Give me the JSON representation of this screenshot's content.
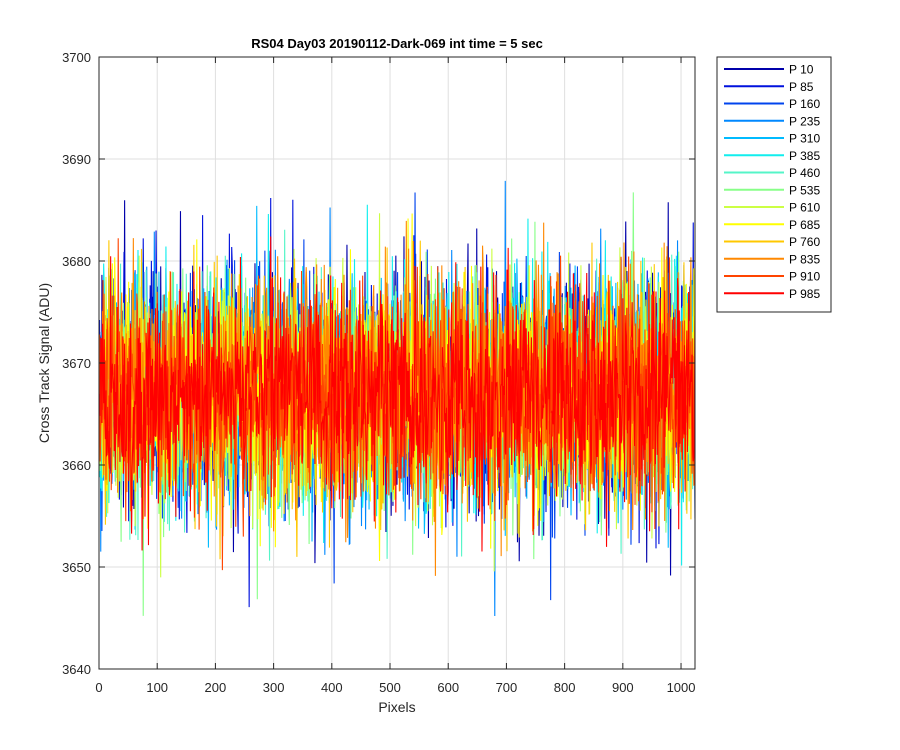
{
  "chart_data": {
    "type": "line",
    "title": "RS04 Day03 20190112-Dark-069 int time = 5 sec",
    "xlabel": "Pixels",
    "ylabel": "Cross Track Signal (ADU)",
    "xlim": [
      0,
      1024
    ],
    "ylim": [
      3640,
      3700
    ],
    "xticks": [
      0,
      100,
      200,
      300,
      400,
      500,
      600,
      700,
      800,
      900,
      1000
    ],
    "yticks": [
      3640,
      3650,
      3660,
      3670,
      3680,
      3690,
      3700
    ],
    "xtick_labels": [
      "0",
      "100",
      "200",
      "300",
      "400",
      "500",
      "600",
      "700",
      "800",
      "900",
      "1000"
    ],
    "ytick_labels": [
      "3640",
      "3650",
      "3660",
      "3670",
      "3680",
      "3690",
      "3700"
    ],
    "grid": true,
    "legend_position": "outside-top-right",
    "series_center": 3667,
    "series_noise_approx": 14,
    "series": [
      {
        "name": "P 10",
        "color": "#0000AA"
      },
      {
        "name": "P 85",
        "color": "#0011DD"
      },
      {
        "name": "P 160",
        "color": "#0044EE"
      },
      {
        "name": "P 235",
        "color": "#0088FF"
      },
      {
        "name": "P 310",
        "color": "#00BBFF"
      },
      {
        "name": "P 385",
        "color": "#11EEEE"
      },
      {
        "name": "P 460",
        "color": "#55F5C8"
      },
      {
        "name": "P 535",
        "color": "#88FF88"
      },
      {
        "name": "P 610",
        "color": "#CCFF44"
      },
      {
        "name": "P 685",
        "color": "#FFFF00"
      },
      {
        "name": "P 760",
        "color": "#FFC800"
      },
      {
        "name": "P 835",
        "color": "#FF8800"
      },
      {
        "name": "P 910",
        "color": "#FF4400"
      },
      {
        "name": "P 985",
        "color": "#FF0000"
      }
    ]
  }
}
